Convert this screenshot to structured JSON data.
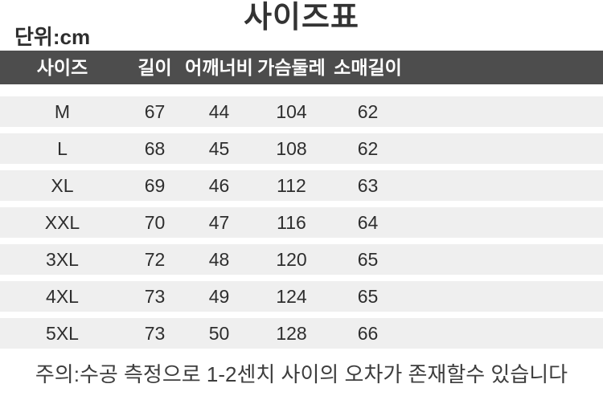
{
  "page": {
    "title": "사이즈표",
    "unit_label": "단위:cm",
    "note": "주의:수공 측정으로 1-2센치 사이의 오차가 존재할수 있습니다"
  },
  "chart_data": {
    "type": "table",
    "title": "사이즈표",
    "unit": "단위:cm",
    "columns": [
      "사이즈",
      "길이",
      "어깨너비",
      "가슴둘레",
      "소매길이"
    ],
    "rows": [
      [
        "M",
        67,
        44,
        104,
        62
      ],
      [
        "L",
        68,
        45,
        108,
        62
      ],
      [
        "XL",
        69,
        46,
        112,
        63
      ],
      [
        "XXL",
        70,
        47,
        116,
        64
      ],
      [
        "3XL",
        72,
        48,
        120,
        65
      ],
      [
        "4XL",
        73,
        49,
        124,
        65
      ],
      [
        "5XL",
        73,
        50,
        128,
        66
      ]
    ],
    "note": "주의:수공 측정으로 1-2센치 사이의 오차가 존재할수 있습니다"
  },
  "colors": {
    "header_bg": "#4d4d4d",
    "header_text": "#ffffff",
    "row_bg": "#efefef",
    "body_text": "#2e2e2e",
    "title_text": "#333333"
  }
}
